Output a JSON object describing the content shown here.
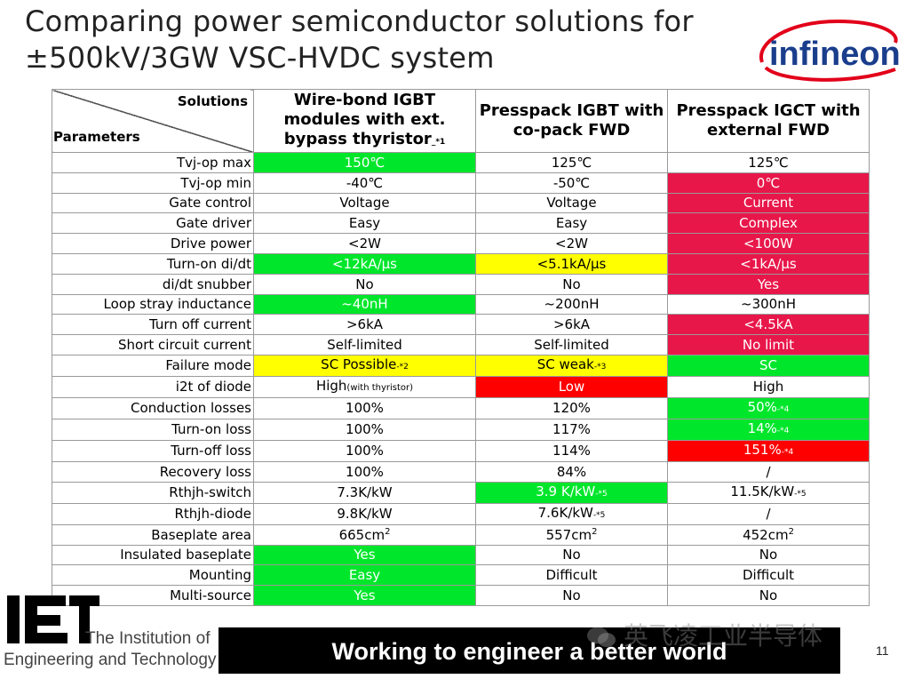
{
  "title": {
    "line1": "Comparing power semiconductor solutions for",
    "line2": "±500kV/3GW VSC-HVDC system"
  },
  "logo_text": "infineon",
  "header": {
    "solutions": "Solutions",
    "parameters": "Parameters",
    "col1": "Wire-bond IGBT modules with ext. bypass thyristor",
    "col1_note": "_*1",
    "col2": "Presspack IGBT with co-pack FWD",
    "col3": "Presspack IGCT with external FWD"
  },
  "rows": [
    {
      "p": "Tvj-op max",
      "c": [
        {
          "v": "150℃",
          "bg": "g"
        },
        {
          "v": "125℃"
        },
        {
          "v": "125℃"
        }
      ]
    },
    {
      "p": "Tvj-op min",
      "c": [
        {
          "v": "-40℃"
        },
        {
          "v": "-50℃"
        },
        {
          "v": "0℃",
          "bg": "r"
        }
      ]
    },
    {
      "p": "Gate control",
      "c": [
        {
          "v": "Voltage"
        },
        {
          "v": "Voltage"
        },
        {
          "v": "Current",
          "bg": "r"
        }
      ]
    },
    {
      "p": "Gate driver",
      "c": [
        {
          "v": "Easy"
        },
        {
          "v": "Easy"
        },
        {
          "v": "Complex",
          "bg": "r"
        }
      ]
    },
    {
      "p": "Drive power",
      "c": [
        {
          "v": "<2W"
        },
        {
          "v": "<2W"
        },
        {
          "v": "<100W",
          "bg": "r"
        }
      ]
    },
    {
      "p": "Turn-on di/dt",
      "c": [
        {
          "v": "<12kA/µs",
          "bg": "g"
        },
        {
          "v": "<5.1kA/µs",
          "bg": "y"
        },
        {
          "v": "<1kA/µs",
          "bg": "r"
        }
      ]
    },
    {
      "p": "di/dt snubber",
      "c": [
        {
          "v": "No"
        },
        {
          "v": "No"
        },
        {
          "v": "Yes",
          "bg": "r"
        }
      ]
    },
    {
      "p": "Loop stray inductance",
      "c": [
        {
          "v": "~40nH",
          "bg": "g"
        },
        {
          "v": "~200nH"
        },
        {
          "v": "~300nH"
        }
      ]
    },
    {
      "p": "Turn off current",
      "c": [
        {
          "v": ">6kA"
        },
        {
          "v": ">6kA"
        },
        {
          "v": "<4.5kA",
          "bg": "r"
        }
      ]
    },
    {
      "p": "Short circuit current",
      "c": [
        {
          "v": "Self-limited"
        },
        {
          "v": "Self-limited"
        },
        {
          "v": "No limit",
          "bg": "r"
        }
      ]
    },
    {
      "p": "Failure mode",
      "c": [
        {
          "v": "SC Possible",
          "n": "-*2",
          "bg": "y"
        },
        {
          "v": "SC weak",
          "n": "-*3",
          "bg": "y"
        },
        {
          "v": "SC",
          "bg": "g"
        }
      ]
    },
    {
      "p": "i2t of diode",
      "c": [
        {
          "v": "High",
          "s": "(with thyristor)"
        },
        {
          "v": "Low",
          "bg": "rr"
        },
        {
          "v": "High"
        }
      ]
    },
    {
      "p": "Conduction losses",
      "c": [
        {
          "v": "100%"
        },
        {
          "v": "120%"
        },
        {
          "v": "50%",
          "n": "-*4",
          "bg": "g"
        }
      ]
    },
    {
      "p": "Turn-on loss",
      "c": [
        {
          "v": "100%"
        },
        {
          "v": "117%"
        },
        {
          "v": "14%",
          "n": "-*4",
          "bg": "g"
        }
      ]
    },
    {
      "p": "Turn-off loss",
      "c": [
        {
          "v": "100%"
        },
        {
          "v": "114%"
        },
        {
          "v": "151%",
          "n": "-*4",
          "bg": "rr"
        }
      ]
    },
    {
      "p": "Recovery loss",
      "c": [
        {
          "v": "100%"
        },
        {
          "v": "84%"
        },
        {
          "v": "/"
        }
      ]
    },
    {
      "p": "Rthjh-switch",
      "c": [
        {
          "v": "7.3K/kW"
        },
        {
          "v": "3.9 K/kW",
          "n": "-*5",
          "bg": "g"
        },
        {
          "v": "11.5K/kW",
          "n": "-*5"
        }
      ]
    },
    {
      "p": "Rthjh-diode",
      "c": [
        {
          "v": "9.8K/kW"
        },
        {
          "v": "7.6K/kW",
          "n": "-*5"
        },
        {
          "v": "/"
        }
      ]
    },
    {
      "p": "Baseplate area",
      "c": [
        {
          "v": "665cm",
          "sup": "2"
        },
        {
          "v": "557cm",
          "sup": "2"
        },
        {
          "v": "452cm",
          "sup": "2"
        }
      ]
    },
    {
      "p": "Insulated baseplate",
      "c": [
        {
          "v": "Yes",
          "bg": "g"
        },
        {
          "v": "No"
        },
        {
          "v": "No"
        }
      ]
    },
    {
      "p": "Mounting",
      "c": [
        {
          "v": "Easy",
          "bg": "g"
        },
        {
          "v": "Difficult"
        },
        {
          "v": "Difficult"
        }
      ]
    },
    {
      "p": "Multi-source",
      "c": [
        {
          "v": "Yes",
          "bg": "g"
        },
        {
          "v": "No"
        },
        {
          "v": "No"
        }
      ]
    }
  ],
  "footer": {
    "iet_logo": "IET",
    "iet_line1": "The Institution of",
    "iet_line2": "Engineering and Technology",
    "banner": "Working to engineer a better world",
    "watermark": "英飞凌工业半导体",
    "page": "11"
  },
  "colors": {
    "green": "#00e62b",
    "yellow": "#ffff00",
    "red": "#e8174a",
    "bright_red": "#ff0000",
    "infineon_blue": "#1a3e8c",
    "infineon_red": "#e2001a"
  }
}
